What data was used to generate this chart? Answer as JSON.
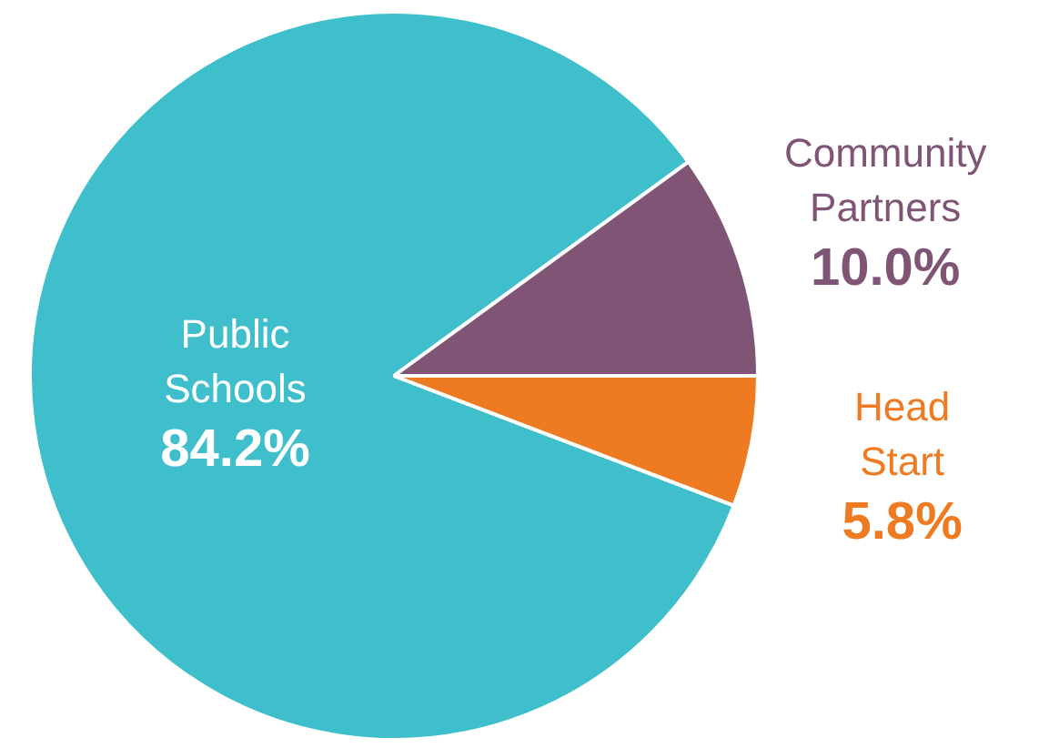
{
  "chart_data": {
    "type": "pie",
    "categories": [
      "Public Schools",
      "Community Partners",
      "Head Start"
    ],
    "values": [
      84.2,
      10.0,
      5.8
    ],
    "value_labels": [
      "84.2%",
      "10.0%",
      "5.8%"
    ],
    "colors": [
      "#3ebfcb",
      "#7f5475",
      "#ee7a22"
    ]
  }
}
